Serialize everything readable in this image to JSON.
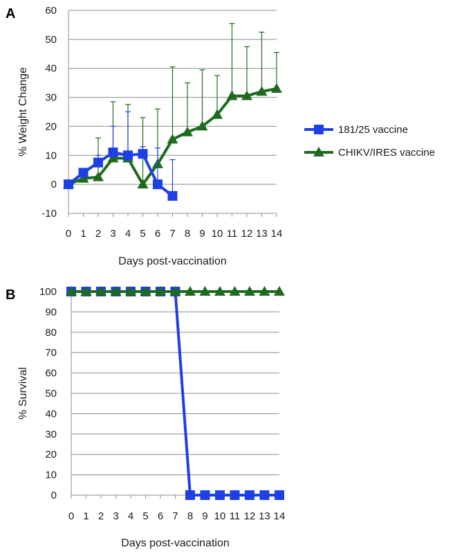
{
  "colors": {
    "series_blue": "#1f3fe6",
    "series_green": "#1e6a1e",
    "grid": "#8c8c8c",
    "text": "#1a1a1a"
  },
  "chart_data": [
    {
      "panel_label": "A",
      "type": "line",
      "ylabel": "% Weight Change",
      "xlabel": "Days post-vaccination",
      "ylim": [
        -10,
        60
      ],
      "yticks": [
        -10,
        0,
        10,
        20,
        30,
        40,
        50,
        60
      ],
      "xlim": [
        0,
        14
      ],
      "xticks": [
        0,
        1,
        2,
        3,
        4,
        5,
        6,
        7,
        8,
        9,
        10,
        11,
        12,
        13,
        14
      ],
      "grid": true,
      "legend_placement": "right",
      "series": [
        {
          "name": "181/25 vaccine",
          "color": "#1f3fe6",
          "marker": "square",
          "x": [
            0,
            1,
            2,
            3,
            4,
            5,
            6,
            7
          ],
          "y": [
            0,
            4,
            7.5,
            11,
            10,
            10.5,
            0,
            -4
          ],
          "err_upper": [
            0,
            4,
            10,
            20,
            25,
            13,
            12.5,
            8.5
          ]
        },
        {
          "name": "CHIKV/IRES vaccine",
          "color": "#1e6a1e",
          "marker": "triangle",
          "x": [
            0,
            1,
            2,
            3,
            4,
            5,
            6,
            7,
            8,
            9,
            10,
            11,
            12,
            13,
            14
          ],
          "y": [
            0,
            2,
            2.5,
            9,
            9,
            0,
            7,
            15.5,
            18,
            20,
            24,
            30.5,
            30.5,
            32,
            33
          ],
          "err_upper": [
            0,
            3,
            16,
            28.5,
            27.5,
            23,
            26,
            40.5,
            35,
            39.5,
            37.5,
            55.5,
            47.5,
            52.5,
            45.5
          ]
        }
      ]
    },
    {
      "panel_label": "B",
      "type": "line",
      "ylabel": "% Survival",
      "xlabel": "Days post-vaccination",
      "ylim": [
        0,
        100
      ],
      "yticks": [
        0,
        10,
        20,
        30,
        40,
        50,
        60,
        70,
        80,
        90,
        100
      ],
      "xlim": [
        0,
        14
      ],
      "xticks": [
        0,
        1,
        2,
        3,
        4,
        5,
        6,
        7,
        8,
        9,
        10,
        11,
        12,
        13,
        14
      ],
      "grid": true,
      "series": [
        {
          "name": "181/25 vaccine",
          "color": "#1f3fe6",
          "marker": "square",
          "x": [
            0,
            1,
            2,
            3,
            4,
            5,
            6,
            7,
            8,
            9,
            10,
            11,
            12,
            13,
            14
          ],
          "y": [
            100,
            100,
            100,
            100,
            100,
            100,
            100,
            100,
            0,
            0,
            0,
            0,
            0,
            0,
            0
          ]
        },
        {
          "name": "CHIKV/IRES vaccine",
          "color": "#1e6a1e",
          "marker": "triangle",
          "x": [
            0,
            1,
            2,
            3,
            4,
            5,
            6,
            7,
            8,
            9,
            10,
            11,
            12,
            13,
            14
          ],
          "y": [
            100,
            100,
            100,
            100,
            100,
            100,
            100,
            100,
            100,
            100,
            100,
            100,
            100,
            100,
            100
          ]
        }
      ]
    }
  ]
}
